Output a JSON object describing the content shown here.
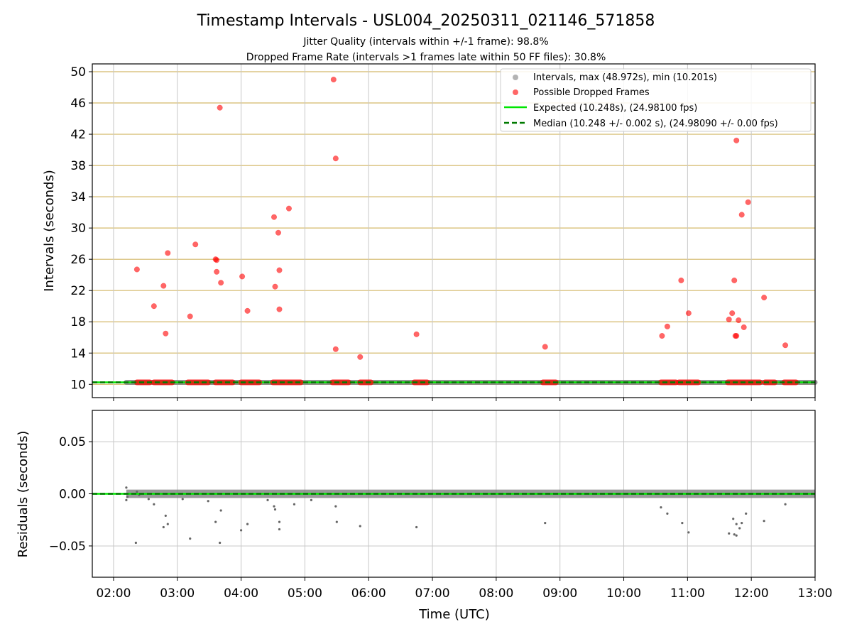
{
  "title": "Timestamp Intervals - USL004_20250311_021146_571858",
  "subtitle1": "Jitter Quality (intervals within +/-1 frame): 98.8%",
  "subtitle2": "Dropped Frame Rate (intervals >1 frames late within 50 FF files): 30.8%",
  "colors": {
    "intervals": "#808080",
    "dropped": "#ff0000",
    "expected": "#00e600",
    "median": "#007a00",
    "ygrid_top": "#d4b96a",
    "xgrid": "#c8c8c8"
  },
  "chart_data": [
    {
      "type": "scatter",
      "ylabel": "Intervals (seconds)",
      "xlim": [
        "01:40",
        "13:00"
      ],
      "ylim": [
        8.3,
        51
      ],
      "yticks": [
        10,
        14,
        18,
        22,
        26,
        30,
        34,
        38,
        42,
        46,
        50
      ],
      "grid": true,
      "legend_position": "top-right",
      "legend": [
        "Intervals, max (48.972s), min (10.201s)",
        "Possible Dropped Frames",
        "Expected (10.248s), (24.98100 fps)",
        "Median (10.248 +/- 0.002 s), (24.98090 +/- 0.00 fps)"
      ],
      "expected_interval": 10.248,
      "median_interval": 10.248,
      "intervals_baseline": {
        "x_start": "02:12",
        "x_end": "13:00",
        "y": 10.25
      },
      "dropped_band_ranges": [
        [
          "02:22",
          "02:34"
        ],
        [
          "02:38",
          "02:55"
        ],
        [
          "03:10",
          "03:29"
        ],
        [
          "03:36",
          "03:52"
        ],
        [
          "04:00",
          "04:17"
        ],
        [
          "04:30",
          "04:56"
        ],
        [
          "05:26",
          "05:41"
        ],
        [
          "05:52",
          "06:02"
        ],
        [
          "06:43",
          "06:55"
        ],
        [
          "08:44",
          "08:56"
        ],
        [
          "10:35",
          "10:49"
        ],
        [
          "10:52",
          "11:10"
        ],
        [
          "11:38",
          "12:08"
        ],
        [
          "12:13",
          "12:22"
        ],
        [
          "12:31",
          "12:42"
        ]
      ],
      "dropped_points": [
        [
          "02:22",
          24.7
        ],
        [
          "02:38",
          20.0
        ],
        [
          "02:47",
          22.6
        ],
        [
          "02:49",
          16.5
        ],
        [
          "02:51",
          26.8
        ],
        [
          "03:12",
          18.7
        ],
        [
          "03:17",
          27.9
        ],
        [
          "03:36",
          26.0
        ],
        [
          "03:37",
          25.9
        ],
        [
          "03:37",
          24.4
        ],
        [
          "03:40",
          45.4
        ],
        [
          "03:41",
          23.0
        ],
        [
          "04:01",
          23.8
        ],
        [
          "04:06",
          19.4
        ],
        [
          "04:31",
          31.4
        ],
        [
          "04:32",
          22.5
        ],
        [
          "04:35",
          29.4
        ],
        [
          "04:36",
          19.6
        ],
        [
          "04:36",
          24.6
        ],
        [
          "04:45",
          32.5
        ],
        [
          "05:27",
          49.0
        ],
        [
          "05:29",
          38.9
        ],
        [
          "05:29",
          14.5
        ],
        [
          "05:52",
          13.5
        ],
        [
          "06:45",
          16.4
        ],
        [
          "08:46",
          14.8
        ],
        [
          "10:36",
          16.2
        ],
        [
          "10:41",
          17.4
        ],
        [
          "10:54",
          23.3
        ],
        [
          "11:01",
          19.1
        ],
        [
          "11:39",
          18.3
        ],
        [
          "11:42",
          19.1
        ],
        [
          "11:44",
          23.3
        ],
        [
          "11:45",
          16.2
        ],
        [
          "11:46",
          16.2
        ],
        [
          "11:46",
          41.2
        ],
        [
          "11:48",
          18.2
        ],
        [
          "11:51",
          31.7
        ],
        [
          "11:53",
          17.3
        ],
        [
          "11:57",
          33.3
        ],
        [
          "12:12",
          21.1
        ],
        [
          "12:32",
          15.0
        ]
      ]
    },
    {
      "type": "scatter",
      "xlabel": "Time (UTC)",
      "ylabel": "Residuals (seconds)",
      "xticks": [
        "02:00",
        "03:00",
        "04:00",
        "05:00",
        "06:00",
        "07:00",
        "08:00",
        "09:00",
        "10:00",
        "11:00",
        "12:00",
        "13:00"
      ],
      "ylim": [
        -0.08,
        0.08
      ],
      "yticks": [
        0.05,
        0.0,
        -0.05
      ],
      "ytick_labels": [
        "0.05",
        "0.00",
        "−0.05"
      ],
      "grid": true,
      "residual_band": {
        "x_start": "02:12",
        "x_end": "13:00",
        "y_center": 0.0,
        "spread": 0.004
      },
      "residual_outliers": [
        [
          "02:12",
          0.006
        ],
        [
          "02:12",
          -0.006
        ],
        [
          "02:13",
          -0.003
        ],
        [
          "02:21",
          -0.047
        ],
        [
          "02:22",
          0.002
        ],
        [
          "02:24",
          -0.001
        ],
        [
          "02:33",
          -0.005
        ],
        [
          "02:38",
          -0.01
        ],
        [
          "02:47",
          -0.032
        ],
        [
          "02:49",
          -0.021
        ],
        [
          "02:51",
          -0.029
        ],
        [
          "03:05",
          -0.005
        ],
        [
          "03:12",
          -0.043
        ],
        [
          "03:29",
          -0.007
        ],
        [
          "03:36",
          -0.027
        ],
        [
          "03:40",
          -0.047
        ],
        [
          "03:41",
          -0.016
        ],
        [
          "04:00",
          -0.035
        ],
        [
          "04:06",
          -0.029
        ],
        [
          "04:25",
          -0.006
        ],
        [
          "04:31",
          -0.012
        ],
        [
          "04:32",
          -0.015
        ],
        [
          "04:36",
          -0.027
        ],
        [
          "04:36",
          -0.034
        ],
        [
          "04:50",
          -0.01
        ],
        [
          "05:06",
          -0.006
        ],
        [
          "05:29",
          -0.012
        ],
        [
          "05:30",
          -0.027
        ],
        [
          "05:52",
          -0.031
        ],
        [
          "06:45",
          -0.032
        ],
        [
          "08:46",
          -0.028
        ],
        [
          "10:35",
          -0.013
        ],
        [
          "10:41",
          -0.019
        ],
        [
          "10:55",
          -0.028
        ],
        [
          "11:01",
          -0.037
        ],
        [
          "11:39",
          -0.038
        ],
        [
          "11:43",
          -0.024
        ],
        [
          "11:44",
          -0.039
        ],
        [
          "11:46",
          -0.04
        ],
        [
          "11:46",
          -0.029
        ],
        [
          "11:49",
          -0.033
        ],
        [
          "11:51",
          -0.028
        ],
        [
          "11:55",
          -0.019
        ],
        [
          "12:12",
          -0.026
        ],
        [
          "12:32",
          -0.01
        ]
      ]
    }
  ]
}
